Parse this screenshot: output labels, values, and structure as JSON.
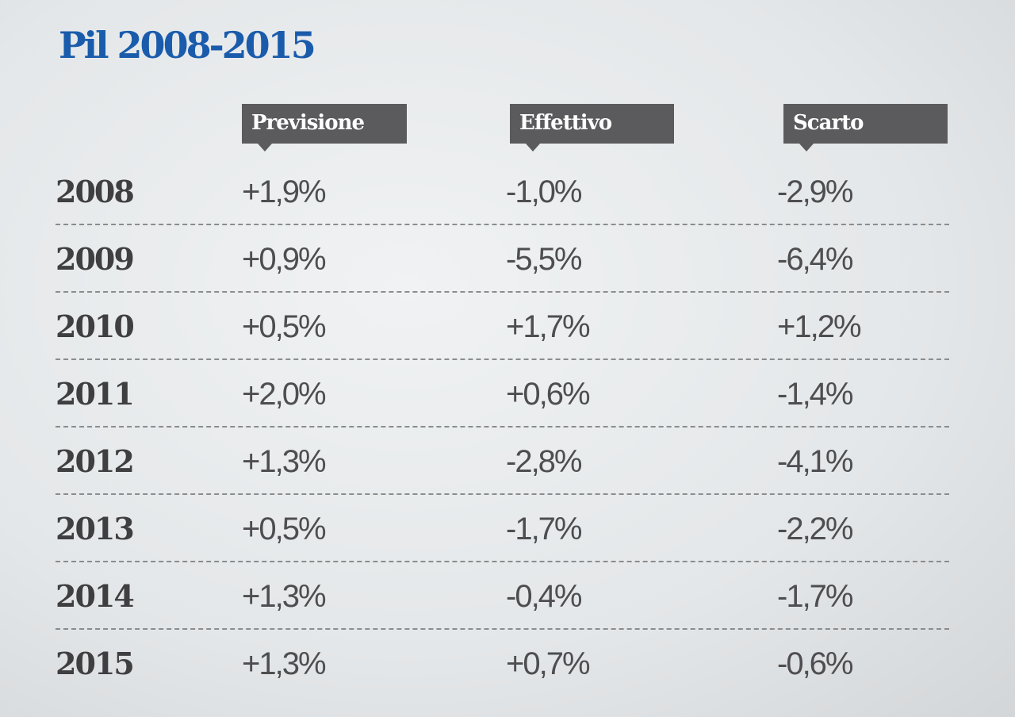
{
  "title": "Pil 2008-2015",
  "table": {
    "headers": [
      "Previsione",
      "Effettivo",
      "Scarto"
    ],
    "rows": [
      [
        "2008",
        "+1,9%",
        "-1,0%",
        "-2,9%"
      ],
      [
        "2009",
        "+0,9%",
        "-5,5%",
        "-6,4%"
      ],
      [
        "2010",
        "+0,5%",
        "+1,7%",
        "+1,2%"
      ],
      [
        "2011",
        "+2,0%",
        "+0,6%",
        "-1,4%"
      ],
      [
        "2012",
        "+1,3%",
        "-2,8%",
        "-4,1%"
      ],
      [
        "2013",
        "+0,5%",
        "-1,7%",
        "-2,2%"
      ],
      [
        "2014",
        "+1,3%",
        "-0,4%",
        "-1,7%"
      ],
      [
        "2015",
        "+1,3%",
        "+0,7%",
        "-0,6%"
      ]
    ]
  }
}
